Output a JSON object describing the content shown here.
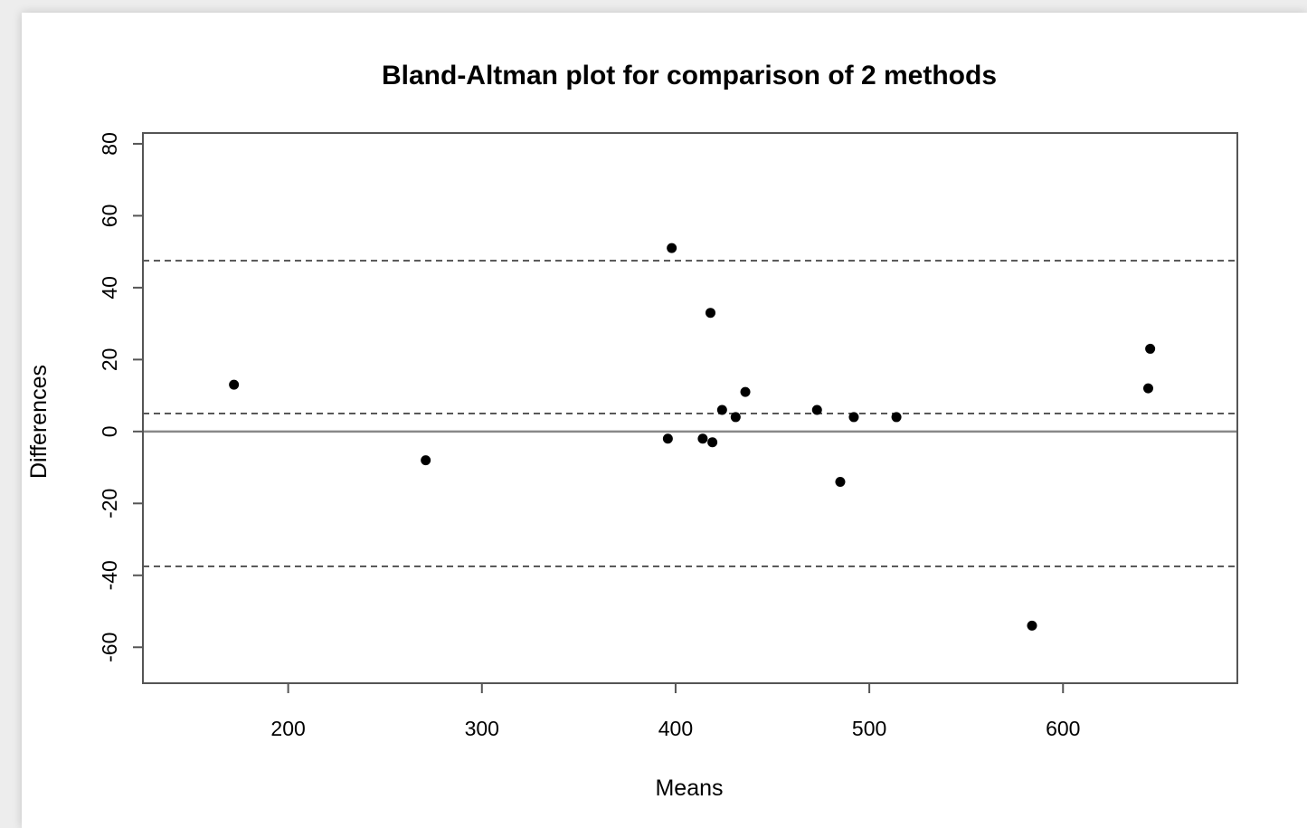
{
  "chart_data": {
    "type": "scatter",
    "title": "Bland-Altman plot for comparison of 2 methods",
    "xlabel": "Means",
    "ylabel": "Differences",
    "xlim": [
      125,
      690
    ],
    "ylim": [
      -70,
      83
    ],
    "x_ticks": [
      200,
      300,
      400,
      500,
      600
    ],
    "y_ticks": [
      -60,
      -40,
      -20,
      0,
      20,
      40,
      60,
      80
    ],
    "grid": false,
    "legend": "none",
    "zero_line": 0,
    "reference_lines": {
      "mean_difference": 5,
      "upper_limit": 47.5,
      "lower_limit": -37.5
    },
    "points": [
      {
        "x": 172,
        "y": 13
      },
      {
        "x": 271,
        "y": -8
      },
      {
        "x": 396,
        "y": -2
      },
      {
        "x": 398,
        "y": 51
      },
      {
        "x": 414,
        "y": -2
      },
      {
        "x": 418,
        "y": 33
      },
      {
        "x": 419,
        "y": -3
      },
      {
        "x": 424,
        "y": 6
      },
      {
        "x": 431,
        "y": 4
      },
      {
        "x": 436,
        "y": 11
      },
      {
        "x": 473,
        "y": 6
      },
      {
        "x": 485,
        "y": -14
      },
      {
        "x": 492,
        "y": 4
      },
      {
        "x": 514,
        "y": 4
      },
      {
        "x": 584,
        "y": -54
      },
      {
        "x": 644,
        "y": 12
      },
      {
        "x": 645,
        "y": 23
      }
    ]
  }
}
